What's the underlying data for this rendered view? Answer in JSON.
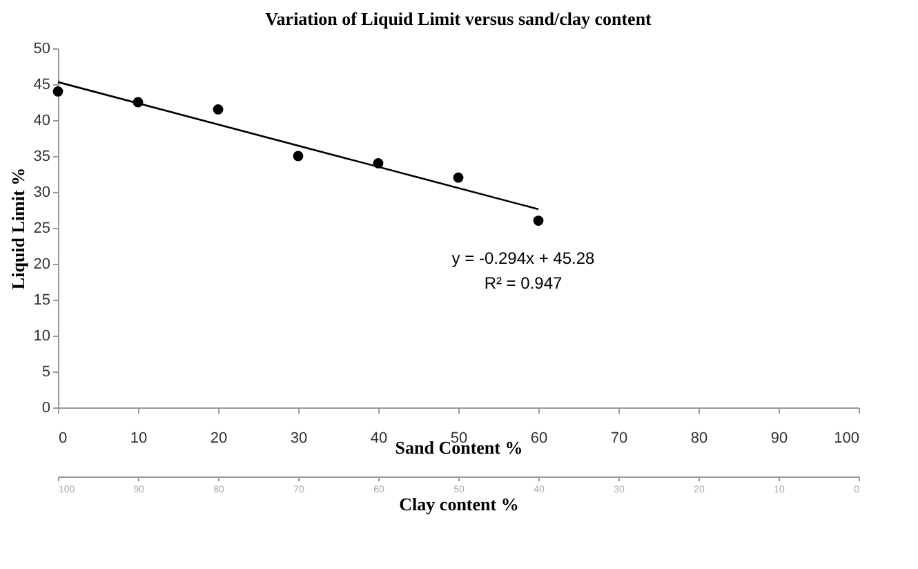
{
  "chart_data": {
    "type": "scatter",
    "title": "Variation of Liquid Limit versus sand/clay content",
    "xlabel": "Sand Content %",
    "ylabel": "Liquid Limit %",
    "x2label": "Clay content %",
    "x": [
      0,
      10,
      20,
      30,
      40,
      50,
      60
    ],
    "series": [
      {
        "color": "#000000",
        "marker": "circle",
        "values": [
          44,
          42.5,
          41.5,
          35,
          34,
          32,
          26
        ]
      },
      {
        "type": "line",
        "color": "#000000",
        "x": [
          0,
          60
        ],
        "values": [
          45.3,
          27.6
        ]
      }
    ],
    "xlim": [
      0,
      100
    ],
    "xticks": [
      0,
      10,
      20,
      30,
      40,
      50,
      60,
      70,
      80,
      90,
      100
    ],
    "x2lim": [
      100,
      0
    ],
    "x2ticks": [
      100,
      90,
      80,
      70,
      60,
      50,
      40,
      30,
      20,
      10,
      0
    ],
    "ylim": [
      0,
      50
    ],
    "yticks": [
      0,
      5,
      10,
      15,
      20,
      25,
      30,
      35,
      40,
      45,
      50
    ],
    "annotations": [
      "y = -0.294x + 45.28",
      "R² = 0.947"
    ],
    "grid": false
  }
}
